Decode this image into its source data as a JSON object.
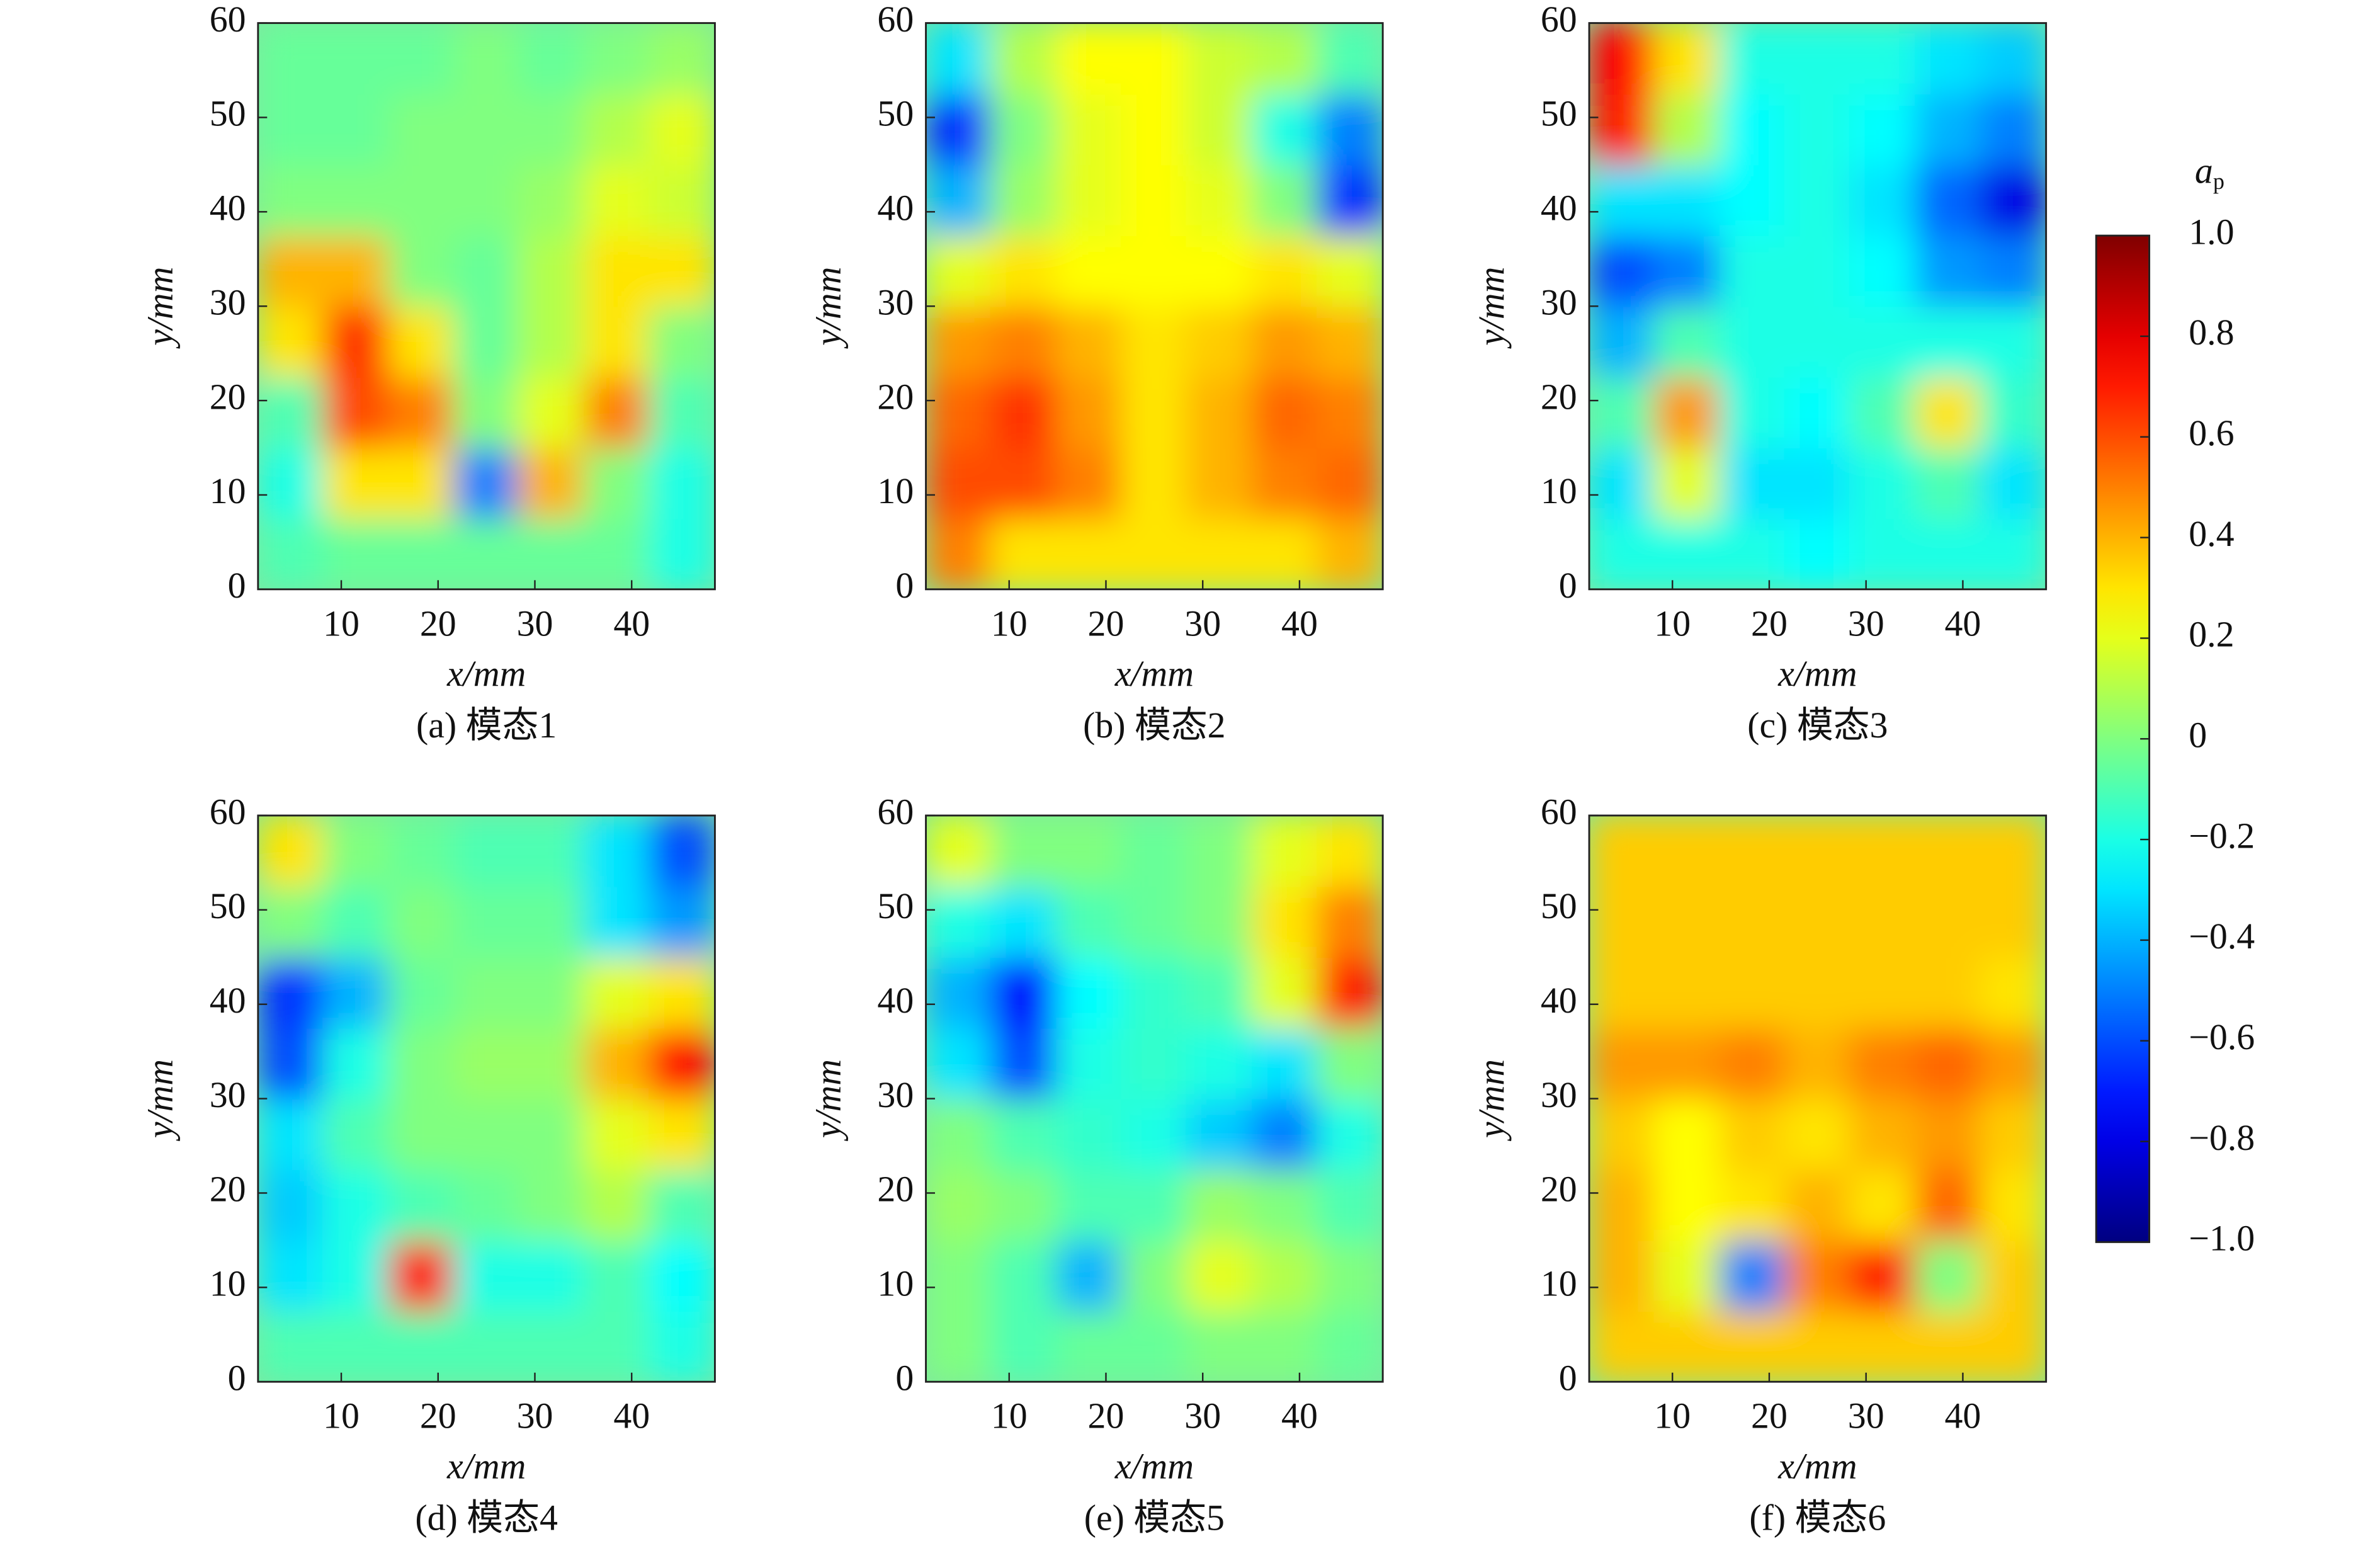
{
  "chart_data": [
    {
      "type": "heatmap",
      "caption": "(a) 模态1",
      "xlabel": "x/mm",
      "ylabel": "y/mm",
      "colormap": "jet",
      "zlim": [
        -1,
        1
      ],
      "xlim": [
        1.4,
        48.6
      ],
      "ylim": [
        0,
        60
      ],
      "xticks": [
        10,
        20,
        30,
        40
      ],
      "yticks": [
        0,
        10,
        20,
        30,
        40,
        50,
        60
      ],
      "x": [
        4.8,
        11.5,
        18.3,
        25.0,
        31.7,
        38.5,
        45.2
      ],
      "y": [
        3.75,
        11.25,
        18.75,
        26.25,
        33.75,
        41.25,
        48.75,
        56.25
      ],
      "z": [
        [
          -0.1,
          -0.05,
          -0.05,
          -0.05,
          -0.05,
          -0.05,
          -0.2
        ],
        [
          -0.2,
          0.3,
          0.3,
          -0.5,
          0.4,
          0.0,
          -0.2
        ],
        [
          -0.1,
          0.6,
          0.5,
          0.0,
          0.2,
          0.5,
          -0.1
        ],
        [
          0.3,
          0.65,
          0.3,
          -0.05,
          0.1,
          0.3,
          0.0
        ],
        [
          0.4,
          0.4,
          0.0,
          -0.05,
          0.1,
          0.3,
          0.3
        ],
        [
          0.0,
          0.0,
          0.0,
          0.0,
          0.05,
          0.2,
          0.15
        ],
        [
          -0.05,
          -0.05,
          0.0,
          0.0,
          0.0,
          0.1,
          0.2
        ],
        [
          -0.05,
          -0.05,
          -0.05,
          0.0,
          -0.05,
          0.0,
          0.05
        ]
      ]
    },
    {
      "type": "heatmap",
      "caption": "(b) 模态2",
      "xlabel": "x/mm",
      "ylabel": "y/mm",
      "colormap": "jet",
      "zlim": [
        -1,
        1
      ],
      "xlim": [
        1.4,
        48.6
      ],
      "ylim": [
        0,
        60
      ],
      "xticks": [
        10,
        20,
        30,
        40
      ],
      "yticks": [
        0,
        10,
        20,
        30,
        40,
        50,
        60
      ],
      "x": [
        4.8,
        11.5,
        18.3,
        25.0,
        31.7,
        38.5,
        45.2
      ],
      "y": [
        3.75,
        11.25,
        18.75,
        26.25,
        33.75,
        41.25,
        48.75,
        56.25
      ],
      "z": [
        [
          0.5,
          0.3,
          0.3,
          0.3,
          0.3,
          0.3,
          0.4
        ],
        [
          0.6,
          0.6,
          0.5,
          0.3,
          0.4,
          0.5,
          0.55
        ],
        [
          0.55,
          0.65,
          0.45,
          0.3,
          0.4,
          0.55,
          0.5
        ],
        [
          0.45,
          0.5,
          0.4,
          0.3,
          0.35,
          0.45,
          0.4
        ],
        [
          0.2,
          0.3,
          0.25,
          0.25,
          0.25,
          0.3,
          0.2
        ],
        [
          -0.4,
          0.05,
          0.2,
          0.25,
          0.2,
          0.0,
          -0.65
        ],
        [
          -0.65,
          0.0,
          0.2,
          0.25,
          0.15,
          -0.2,
          -0.5
        ],
        [
          -0.3,
          0.1,
          0.25,
          0.25,
          0.15,
          0.1,
          -0.1
        ]
      ]
    },
    {
      "type": "heatmap",
      "caption": "(c) 模态3",
      "xlabel": "x/mm",
      "ylabel": "y/mm",
      "colormap": "jet",
      "zlim": [
        -1,
        1
      ],
      "xlim": [
        1.4,
        48.6
      ],
      "ylim": [
        0,
        60
      ],
      "xticks": [
        10,
        20,
        30,
        40
      ],
      "yticks": [
        0,
        10,
        20,
        30,
        40,
        50,
        60
      ],
      "x": [
        4.8,
        11.5,
        18.3,
        25.0,
        31.7,
        38.5,
        45.2
      ],
      "y": [
        3.75,
        11.25,
        18.75,
        26.25,
        33.75,
        41.25,
        48.75,
        56.25
      ],
      "z": [
        [
          -0.2,
          -0.2,
          -0.2,
          -0.25,
          -0.2,
          -0.2,
          -0.2
        ],
        [
          -0.3,
          0.2,
          -0.3,
          -0.3,
          -0.2,
          -0.1,
          -0.3
        ],
        [
          -0.1,
          0.45,
          -0.2,
          -0.25,
          -0.1,
          0.3,
          -0.15
        ],
        [
          -0.4,
          -0.1,
          -0.2,
          -0.2,
          -0.2,
          -0.2,
          -0.2
        ],
        [
          -0.6,
          -0.5,
          -0.2,
          -0.2,
          -0.25,
          -0.45,
          -0.5
        ],
        [
          -0.3,
          -0.3,
          -0.25,
          -0.2,
          -0.3,
          -0.55,
          -0.8
        ],
        [
          0.7,
          0.1,
          -0.25,
          -0.2,
          -0.25,
          -0.4,
          -0.5
        ],
        [
          0.75,
          0.3,
          -0.2,
          -0.2,
          -0.2,
          -0.3,
          -0.35
        ]
      ]
    },
    {
      "type": "heatmap",
      "caption": "(d) 模态4",
      "xlabel": "x/mm",
      "ylabel": "y/mm",
      "colormap": "jet",
      "zlim": [
        -1,
        1
      ],
      "xlim": [
        1.4,
        48.6
      ],
      "ylim": [
        0,
        60
      ],
      "xticks": [
        10,
        20,
        30,
        40
      ],
      "yticks": [
        0,
        10,
        20,
        30,
        40,
        50,
        60
      ],
      "x": [
        4.8,
        11.5,
        18.3,
        25.0,
        31.7,
        38.5,
        45.2
      ],
      "y": [
        3.75,
        11.25,
        18.75,
        26.25,
        33.75,
        41.25,
        48.75,
        56.25
      ],
      "z": [
        [
          -0.1,
          -0.1,
          -0.1,
          -0.1,
          -0.1,
          -0.1,
          -0.2
        ],
        [
          -0.3,
          -0.2,
          0.7,
          -0.2,
          -0.2,
          -0.1,
          -0.25
        ],
        [
          -0.35,
          -0.2,
          -0.1,
          -0.05,
          0.0,
          0.1,
          -0.1
        ],
        [
          -0.3,
          -0.1,
          0.0,
          0.0,
          0.0,
          0.2,
          0.3
        ],
        [
          -0.6,
          -0.2,
          0.0,
          0.05,
          0.05,
          0.4,
          0.75
        ],
        [
          -0.65,
          -0.4,
          -0.05,
          0.0,
          0.0,
          0.2,
          0.3
        ],
        [
          0.0,
          -0.1,
          0.0,
          -0.05,
          -0.05,
          -0.3,
          -0.45
        ],
        [
          0.3,
          0.0,
          -0.05,
          -0.1,
          -0.1,
          -0.3,
          -0.6
        ]
      ]
    },
    {
      "type": "heatmap",
      "caption": "(e) 模态5",
      "xlabel": "x/mm",
      "ylabel": "y/mm",
      "colormap": "jet",
      "zlim": [
        -1,
        1
      ],
      "xlim": [
        1.4,
        48.6
      ],
      "ylim": [
        0,
        60
      ],
      "xticks": [
        10,
        20,
        30,
        40
      ],
      "yticks": [
        0,
        10,
        20,
        30,
        40,
        50,
        60
      ],
      "x": [
        4.8,
        11.5,
        18.3,
        25.0,
        31.7,
        38.5,
        45.2
      ],
      "y": [
        3.75,
        11.25,
        18.75,
        26.25,
        33.75,
        41.25,
        48.75,
        56.25
      ],
      "z": [
        [
          0.0,
          -0.1,
          -0.05,
          -0.05,
          0.0,
          0.0,
          -0.05
        ],
        [
          0.0,
          -0.1,
          -0.4,
          0.0,
          0.2,
          0.1,
          0.0
        ],
        [
          0.05,
          0.0,
          -0.1,
          -0.1,
          0.05,
          0.0,
          -0.1
        ],
        [
          0.0,
          -0.1,
          -0.15,
          -0.2,
          -0.35,
          -0.5,
          -0.2
        ],
        [
          -0.3,
          -0.6,
          -0.2,
          -0.15,
          -0.2,
          -0.3,
          0.0
        ],
        [
          -0.4,
          -0.75,
          -0.25,
          -0.15,
          -0.1,
          0.2,
          0.7
        ],
        [
          -0.2,
          -0.3,
          -0.1,
          -0.05,
          0.0,
          0.3,
          0.5
        ],
        [
          0.2,
          0.0,
          0.0,
          -0.05,
          0.0,
          0.2,
          0.3
        ]
      ]
    },
    {
      "type": "heatmap",
      "caption": "(f) 模态6",
      "xlabel": "x/mm",
      "ylabel": "y/mm",
      "colormap": "jet",
      "zlim": [
        -1,
        1
      ],
      "xlim": [
        1.4,
        48.6
      ],
      "ylim": [
        0,
        60
      ],
      "xticks": [
        10,
        20,
        30,
        40
      ],
      "yticks": [
        0,
        10,
        20,
        30,
        40,
        50,
        60
      ],
      "x": [
        4.8,
        11.5,
        18.3,
        25.0,
        31.7,
        38.5,
        45.2
      ],
      "y": [
        3.75,
        11.25,
        18.75,
        26.25,
        33.75,
        41.25,
        48.75,
        56.25
      ],
      "z": [
        [
          0.35,
          0.35,
          0.35,
          0.35,
          0.35,
          0.35,
          0.35
        ],
        [
          0.4,
          0.2,
          -0.5,
          0.5,
          0.7,
          0.0,
          0.35
        ],
        [
          0.4,
          0.25,
          0.3,
          0.4,
          0.3,
          0.55,
          0.3
        ],
        [
          0.35,
          0.25,
          0.35,
          0.3,
          0.4,
          0.45,
          0.35
        ],
        [
          0.45,
          0.45,
          0.5,
          0.4,
          0.5,
          0.55,
          0.45
        ],
        [
          0.35,
          0.35,
          0.35,
          0.35,
          0.35,
          0.35,
          0.3
        ],
        [
          0.35,
          0.35,
          0.35,
          0.35,
          0.35,
          0.35,
          0.35
        ],
        [
          0.35,
          0.35,
          0.35,
          0.35,
          0.35,
          0.35,
          0.35
        ]
      ]
    },
    {
      "type": "colorbar",
      "label": "a",
      "label_sub": "p",
      "colormap": "jet",
      "zlim": [
        -1,
        1
      ],
      "ticks": [
        {
          "value": 1,
          "label": "1.0"
        },
        0.8,
        0.6,
        0.4,
        0.2,
        0,
        {
          "value": -0.2,
          "label": "−0.2"
        },
        {
          "value": -0.4,
          "label": "−0.4"
        },
        {
          "value": -0.6,
          "label": "−0.6"
        },
        {
          "value": -0.8,
          "label": "−0.8"
        },
        {
          "value": -1,
          "label": "−1.0"
        }
      ]
    }
  ]
}
